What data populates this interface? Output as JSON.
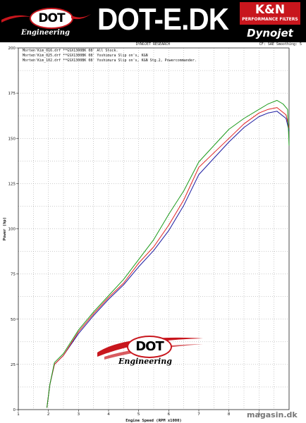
{
  "header": {
    "dot_logo": "DOT",
    "dot_subtitle": "Engineering",
    "site_title": "DOT-E.DK",
    "kn_logo": "K&N",
    "kn_tagline": "PERFORMANCE FILTERS",
    "dynojet_logo": "Dynojet"
  },
  "sheet": {
    "title": "DYNOJET RESEARCH",
    "meta": "CF: SAE  Smoothing: 5"
  },
  "watermark": {
    "logo": "DOT",
    "subtitle": "Engineering",
    "site": "magasin.dk"
  },
  "colors": {
    "stock": "#1a1aa0",
    "yoshimura_kn": "#e02020",
    "powercommander": "#1a9a1a",
    "grid": "#9a9a9a",
    "accent": "#c8161d"
  },
  "chart_data": {
    "type": "line",
    "title": "",
    "xlabel": "Engine Speed (RPM x1000)",
    "ylabel": "Power (hp)",
    "xlim": [
      1,
      10
    ],
    "ylim": [
      0,
      200
    ],
    "x_ticks": [
      1,
      2,
      3,
      4,
      5,
      6,
      7,
      8,
      9
    ],
    "y_ticks": [
      0,
      25,
      50,
      75,
      100,
      125,
      150,
      175,
      200
    ],
    "grid": true,
    "legend_position": "top-left",
    "legend": [
      "Morten'Kim_016.drf **GSX1300BK 08' All Stock.",
      "Morten'Kim_025.drf **GSX1300BK 08' Yoshimura Slip on's, K&N",
      "Morten'Kim_102.drf **GSX1300BK 08' Yoshimura Slip on's, K&N Stg.2, Powercommander."
    ],
    "series": [
      {
        "color_key": "stock",
        "x": [
          1.95,
          2.05,
          2.2,
          2.5,
          3.0,
          3.5,
          4.0,
          4.5,
          5.0,
          5.5,
          6.0,
          6.5,
          7.0,
          7.5,
          8.0,
          8.5,
          9.0,
          9.3,
          9.6,
          9.9,
          10.0
        ],
        "y": [
          1,
          14,
          25,
          30,
          42,
          52,
          61,
          69,
          79,
          88,
          99,
          113,
          130,
          139,
          148,
          156,
          162,
          164,
          165,
          161,
          154
        ]
      },
      {
        "color_key": "yoshimura_kn",
        "x": [
          1.95,
          2.05,
          2.2,
          2.5,
          3.0,
          3.5,
          4.0,
          4.5,
          5.0,
          5.5,
          6.0,
          6.5,
          7.0,
          7.5,
          8.0,
          8.5,
          9.0,
          9.3,
          9.6,
          9.9,
          10.0
        ],
        "y": [
          1,
          14,
          25,
          30,
          43,
          53,
          62,
          70,
          81,
          90,
          102,
          116,
          134,
          142,
          150,
          158,
          164,
          166,
          167,
          163,
          156
        ]
      },
      {
        "color_key": "powercommander",
        "x": [
          1.95,
          2.05,
          2.2,
          2.5,
          3.0,
          3.5,
          4.0,
          4.5,
          5.0,
          5.5,
          6.0,
          6.5,
          7.0,
          7.5,
          8.0,
          8.5,
          9.0,
          9.3,
          9.6,
          9.8,
          9.95,
          10.0
        ],
        "y": [
          1,
          14,
          26,
          31,
          44,
          54,
          63,
          72,
          83,
          94,
          108,
          121,
          137,
          146,
          155,
          161,
          166,
          169,
          171,
          169,
          166,
          146
        ]
      }
    ]
  }
}
